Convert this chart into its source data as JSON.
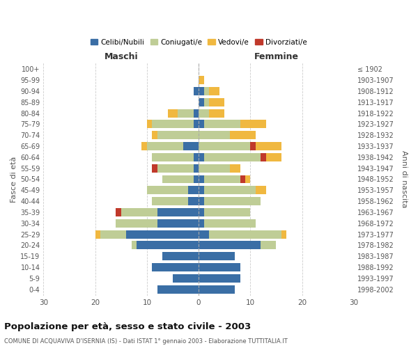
{
  "age_groups": [
    "0-4",
    "5-9",
    "10-14",
    "15-19",
    "20-24",
    "25-29",
    "30-34",
    "35-39",
    "40-44",
    "45-49",
    "50-54",
    "55-59",
    "60-64",
    "65-69",
    "70-74",
    "75-79",
    "80-84",
    "85-89",
    "90-94",
    "95-99",
    "100+"
  ],
  "birth_years": [
    "1998-2002",
    "1993-1997",
    "1988-1992",
    "1983-1987",
    "1978-1982",
    "1973-1977",
    "1968-1972",
    "1963-1967",
    "1958-1962",
    "1953-1957",
    "1948-1952",
    "1943-1947",
    "1938-1942",
    "1933-1937",
    "1928-1932",
    "1923-1927",
    "1918-1922",
    "1913-1917",
    "1908-1912",
    "1903-1907",
    "≤ 1902"
  ],
  "males": {
    "celibi": [
      8,
      5,
      9,
      7,
      12,
      14,
      8,
      8,
      2,
      2,
      1,
      1,
      1,
      3,
      0,
      1,
      1,
      0,
      1,
      0,
      0
    ],
    "coniugati": [
      0,
      0,
      0,
      0,
      1,
      5,
      8,
      7,
      7,
      8,
      6,
      7,
      8,
      7,
      8,
      8,
      3,
      0,
      0,
      0,
      0
    ],
    "vedovi": [
      0,
      0,
      0,
      0,
      0,
      1,
      0,
      0,
      0,
      0,
      0,
      0,
      0,
      1,
      1,
      1,
      2,
      0,
      0,
      0,
      0
    ],
    "divorziati": [
      0,
      0,
      0,
      0,
      0,
      0,
      0,
      1,
      0,
      0,
      0,
      1,
      0,
      0,
      0,
      0,
      0,
      0,
      0,
      0,
      0
    ]
  },
  "females": {
    "nubili": [
      7,
      8,
      8,
      7,
      12,
      2,
      1,
      1,
      1,
      1,
      1,
      0,
      1,
      0,
      0,
      1,
      0,
      1,
      1,
      0,
      0
    ],
    "coniugate": [
      0,
      0,
      0,
      0,
      3,
      14,
      10,
      9,
      11,
      10,
      7,
      6,
      11,
      10,
      6,
      7,
      2,
      1,
      1,
      0,
      0
    ],
    "vedove": [
      0,
      0,
      0,
      0,
      0,
      1,
      0,
      0,
      0,
      2,
      1,
      2,
      3,
      5,
      5,
      5,
      3,
      3,
      2,
      1,
      0
    ],
    "divorziate": [
      0,
      0,
      0,
      0,
      0,
      0,
      0,
      0,
      0,
      0,
      1,
      0,
      1,
      1,
      0,
      0,
      0,
      0,
      0,
      0,
      0
    ]
  },
  "colors": {
    "celibi": "#3A6EA5",
    "coniugati": "#BFCD96",
    "vedovi": "#F0B840",
    "divorziati": "#C0392B"
  },
  "legend_labels": [
    "Celibi/Nubili",
    "Coniugati/e",
    "Vedovi/e",
    "Divorziati/e"
  ],
  "title": "Popolazione per età, sesso e stato civile - 2003",
  "subtitle": "COMUNE DI ACQUAVIVA D'ISERNIA (IS) - Dati ISTAT 1° gennaio 2003 - Elaborazione TUTTITALIA.IT",
  "xlabel_left": "Maschi",
  "xlabel_right": "Femmine",
  "ylabel_left": "Fasce di età",
  "ylabel_right": "Anni di nascita",
  "xlim": 30,
  "bg_color": "#FFFFFF",
  "grid_color": "#CCCCCC",
  "bar_height": 0.75
}
